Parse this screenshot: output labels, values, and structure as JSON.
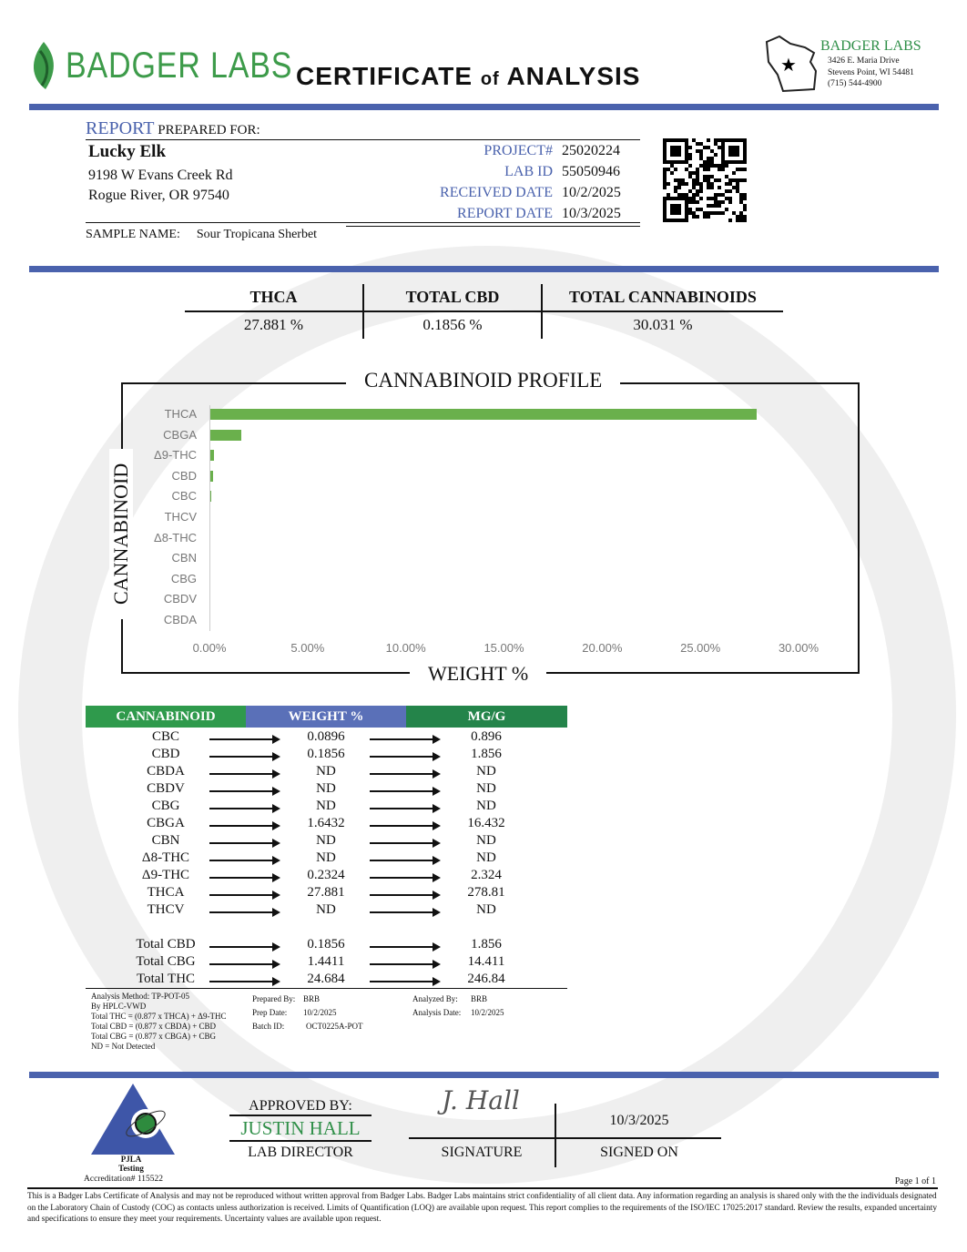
{
  "header": {
    "logo_text": "BADGER LABS",
    "title_main": "CERTIFICATE",
    "title_of": "of",
    "title_end": "ANALYSIS",
    "lab_name": "BADGER LABS",
    "lab_address1": "3426 E. Maria Drive",
    "lab_address2": "Stevens Point, WI 54481",
    "lab_phone": "(715) 544-4900"
  },
  "client": {
    "report_label": "REPORT",
    "prepared_for": "PREPARED FOR:",
    "name": "Lucky Elk",
    "address1": "9198 W Evans Creek Rd",
    "address2": "Rogue River, OR 97540",
    "sample_name_label": "SAMPLE NAME:",
    "sample_name": "Sour Tropicana Sherbet"
  },
  "meta": [
    {
      "label": "PROJECT#",
      "value": "25020224"
    },
    {
      "label": "LAB ID",
      "value": "55050946"
    },
    {
      "label": "RECEIVED DATE",
      "value": "10/2/2025"
    },
    {
      "label": "REPORT DATE",
      "value": "10/3/2025"
    }
  ],
  "summary": [
    {
      "label": "THCA",
      "value": "27.881 %"
    },
    {
      "label": "TOTAL CBD",
      "value": "0.1856 %"
    },
    {
      "label": "TOTAL CANNABINOIDS",
      "value": "30.031 %"
    }
  ],
  "chart_data": {
    "type": "bar",
    "orientation": "horizontal",
    "title": "CANNABINOID PROFILE",
    "xlabel": "WEIGHT %",
    "ylabel": "CANNABINOID",
    "categories": [
      "THCA",
      "CBGA",
      "Δ9-THC",
      "CBD",
      "CBC",
      "THCV",
      "Δ8-THC",
      "CBN",
      "CBG",
      "CBDV",
      "CBDA"
    ],
    "values": [
      27.881,
      1.6432,
      0.2324,
      0.1856,
      0.0896,
      0,
      0,
      0,
      0,
      0,
      0
    ],
    "xlim": [
      0,
      30
    ],
    "xticks": [
      "0.00%",
      "5.00%",
      "10.00%",
      "15.00%",
      "20.00%",
      "25.00%",
      "30.00%"
    ],
    "bar_color": "#6ab04c",
    "grid": false
  },
  "table": {
    "headers": [
      "CANNABINOID",
      "WEIGHT %",
      "MG/G"
    ],
    "header_colors": [
      "#2f9a4c",
      "#5a70b8",
      "#24844a"
    ],
    "rows": [
      [
        "CBC",
        "0.0896",
        "0.896"
      ],
      [
        "CBD",
        "0.1856",
        "1.856"
      ],
      [
        "CBDA",
        "ND",
        "ND"
      ],
      [
        "CBDV",
        "ND",
        "ND"
      ],
      [
        "CBG",
        "ND",
        "ND"
      ],
      [
        "CBGA",
        "1.6432",
        "16.432"
      ],
      [
        "CBN",
        "ND",
        "ND"
      ],
      [
        "Δ8-THC",
        "ND",
        "ND"
      ],
      [
        "Δ9-THC",
        "0.2324",
        "2.324"
      ],
      [
        "THCA",
        "27.881",
        "278.81"
      ],
      [
        "THCV",
        "ND",
        "ND"
      ]
    ],
    "totals": [
      [
        "Total CBD",
        "0.1856",
        "1.856"
      ],
      [
        "Total CBG",
        "1.4411",
        "14.411"
      ],
      [
        "Total THC",
        "24.684",
        "246.84"
      ]
    ]
  },
  "notes": {
    "method": [
      "Analysis Method: TP-POT-05",
      "By HPLC-VWD",
      "Total THC = (0.877 x  THCA) + Δ9-THC",
      "Total CBD = (0.877 x  CBDA) + CBD",
      "Total CBG = (0.877 x  CBGA) + CBG",
      "ND = Not Detected"
    ],
    "prepared_by_label": "Prepared By:",
    "prepared_by": "BRB",
    "prep_date_label": "Prep Date:",
    "prep_date": "10/2/2025",
    "batch_label": "Batch ID:",
    "batch": "OCT0225A-POT",
    "analyzed_by_label": "Analyzed By:",
    "analyzed_by": "BRB",
    "analysis_date_label": "Analysis Date:",
    "analysis_date": "10/2/2025"
  },
  "approval": {
    "pjla": "PJLA",
    "testing": "Testing",
    "accreditation": "Accreditation# 115522",
    "approved_by": "APPROVED BY:",
    "name": "JUSTIN HALL",
    "role": "LAB DIRECTOR",
    "signature_label": "SIGNATURE",
    "signature_text": "J. Hall",
    "signed_on": "10/3/2025",
    "signed_on_label": "SIGNED ON"
  },
  "footer": {
    "page": "Page 1 of 1",
    "disclaimer": "This is a Badger Labs Certificate of Analysis and may not be reproduced without written approval from Badger Labs. Badger Labs maintains strict confidentiality of all client data. Any information regarding an analysis is shared only with the the individuals designated on the Laboratory Chain of Custody (COC) as contacts unless authorization is received. Limits of Quantification (LOQ) are available upon request. This report complies to the requirements of the ISO/IEC 17025:2017 standard. Review the results, expanded uncertainty and specifications to ensure they meet your requirements. Uncertainty values are available upon request."
  }
}
